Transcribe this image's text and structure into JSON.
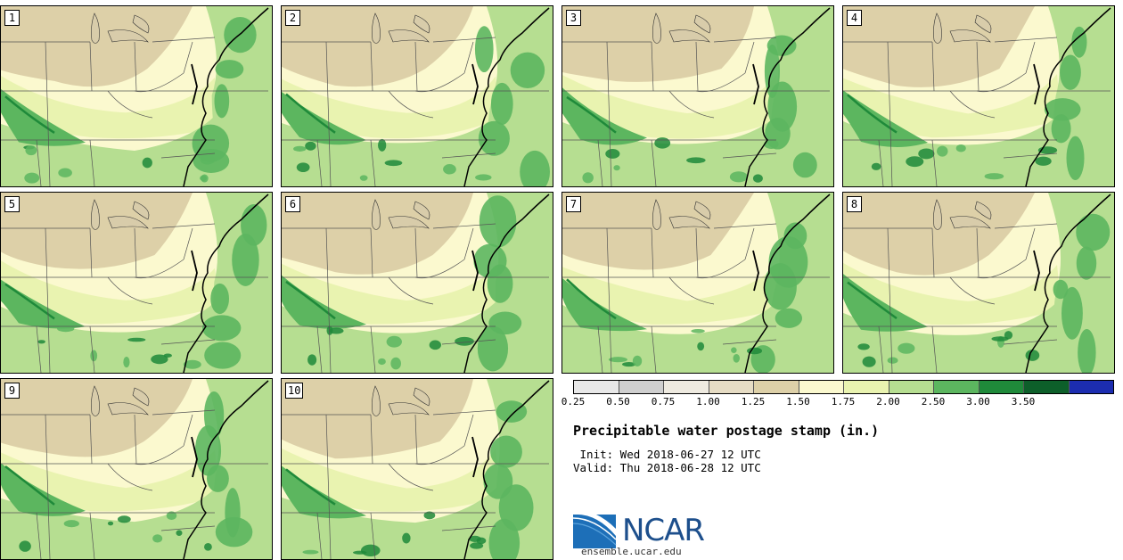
{
  "panels": [
    {
      "label": "1"
    },
    {
      "label": "2"
    },
    {
      "label": "3"
    },
    {
      "label": "4"
    },
    {
      "label": "5"
    },
    {
      "label": "6"
    },
    {
      "label": "7"
    },
    {
      "label": "8"
    },
    {
      "label": "9"
    },
    {
      "label": "10"
    }
  ],
  "colorbar": {
    "colors": [
      "#e8e8e8",
      "#cfcfcf",
      "#eeeae0",
      "#e6dcc4",
      "#ddd0a8",
      "#fbf9cf",
      "#e9f3b0",
      "#b6de91",
      "#5cb65f",
      "#1f8a3a",
      "#0d5f2a",
      "#1c2db0"
    ],
    "ticks": [
      "0.25",
      "0.50",
      "0.75",
      "1.00",
      "1.25",
      "1.50",
      "1.75",
      "2.00",
      "2.50",
      "3.00",
      "3.50"
    ]
  },
  "title": "Precipitable water postage stamp (in.)",
  "init_line": " Init: Wed 2018-06-27 12 UTC",
  "valid_line": "Valid: Thu 2018-06-28 12 UTC",
  "logo": {
    "text": "NCAR",
    "color": "#1d4f8c"
  },
  "site": "ensemble.ucar.edu",
  "map_colors": {
    "dry": "#ddd0a8",
    "low": "#fbf9cf",
    "mid": "#e9f3b0",
    "moist": "#b6de91",
    "wet": "#5cb65f",
    "vwet": "#1f8a3a"
  }
}
